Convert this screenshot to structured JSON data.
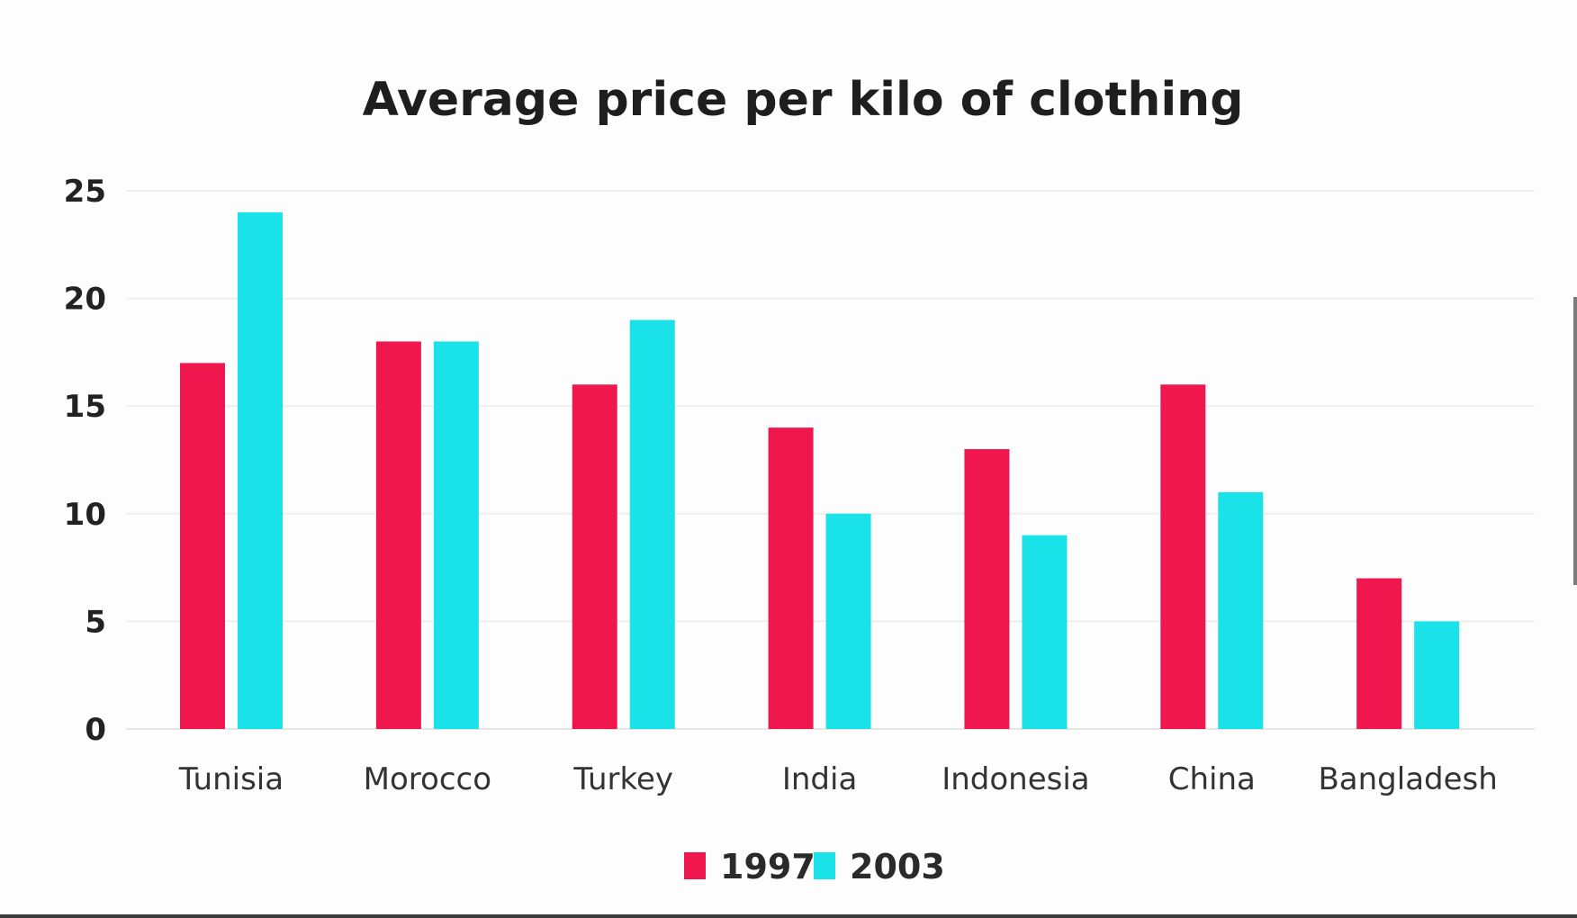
{
  "chart_data": {
    "type": "bar",
    "title": "Average price per kilo of clothing",
    "xlabel": "",
    "ylabel": "",
    "categories": [
      "Tunisia",
      "Morocco",
      "Turkey",
      "India",
      "Indonesia",
      "China",
      "Bangladesh"
    ],
    "series": [
      {
        "name": "1997",
        "values": [
          17,
          18,
          16,
          14,
          13,
          16,
          7
        ],
        "color": "#f0174f"
      },
      {
        "name": "2003",
        "values": [
          24,
          18,
          19,
          10,
          9,
          11,
          5
        ],
        "color": "#19e3e8"
      }
    ],
    "yticks": [
      "0",
      "5",
      "10",
      "15",
      "20",
      "25"
    ],
    "ylim": [
      0,
      25
    ],
    "grid": true,
    "legend": "bottom-center"
  }
}
